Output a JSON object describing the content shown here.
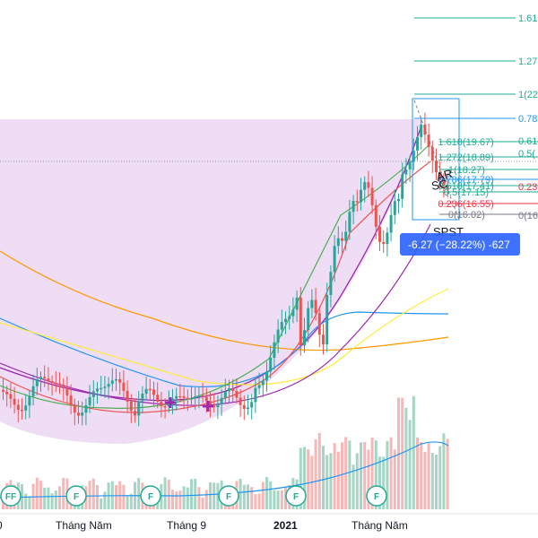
{
  "chart_data": {
    "type": "candlestick",
    "x_ticks": [
      "Tháng Năm",
      "Tháng 9",
      "2021",
      "Tháng Năm"
    ],
    "fib_extension_levels": [
      {
        "label": "1.61",
        "color": "#22ab94"
      },
      {
        "label": "1.27",
        "color": "#22ab94"
      },
      {
        "label": "1(22",
        "color": "#22ab94"
      },
      {
        "label": "0.78",
        "color": "#2196f3"
      }
    ],
    "fib_retracement_levels": [
      {
        "label": "1.618(19.67)",
        "color": "#22ab94"
      },
      {
        "label": "1.272(18.89)",
        "color": "#22ab94"
      },
      {
        "label": "1(18.27)",
        "color": "#22ab94"
      },
      {
        "label": "0.786(17.79)",
        "color": "#2196f3"
      },
      {
        "label": "0.618(17.41)",
        "color": "#22ab94"
      },
      {
        "label": "0.5(17.15)",
        "color": "#22ab94"
      },
      {
        "label": "0.236(16.55)",
        "color": "#f23645"
      },
      {
        "label": "0(16.02)",
        "color": "#787b86"
      }
    ],
    "fib_right_labels": [
      {
        "label": "0.61",
        "color": "#22ab94"
      },
      {
        "label": "0.5(",
        "color": "#22ab94"
      },
      {
        "label": "0.23",
        "color": "#f23645"
      },
      {
        "label": "0(16",
        "color": "#787b86"
      }
    ],
    "annotations": [
      "AR",
      "SC",
      "SPST"
    ],
    "measure_label": "-6.27 (−28.22%) -627",
    "event_flags": [
      "FF",
      "F",
      "F",
      "F",
      "F",
      "F"
    ],
    "colors": {
      "up": "#26a69a",
      "down": "#ef5350",
      "volume_up": "#a5d6c5",
      "volume_down": "#f7b7b6",
      "cup_fill": "#e8d5f0",
      "cup_line": "#9c27b0",
      "ma_orange": "#ff9800",
      "ma_blue": "#2196f3",
      "ma_yellow": "#ffeb3b",
      "measure_box": "#2962ff"
    }
  }
}
